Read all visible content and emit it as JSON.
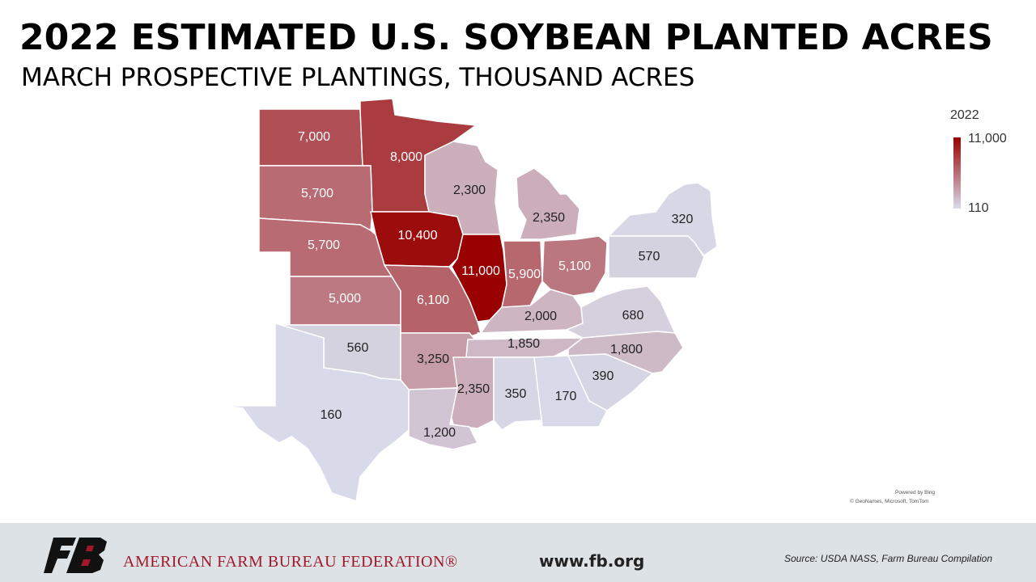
{
  "header": {
    "title": "2022 ESTIMATED U.S. SOYBEAN PLANTED ACRES",
    "subtitle": "MARCH PROSPECTIVE PLANTINGS, THOUSAND ACRES"
  },
  "legend": {
    "title": "2022",
    "max_label": "11,000",
    "min_label": "110",
    "max_value": 11000,
    "min_value": 110,
    "max_color": "#990000",
    "min_color": "#d8dbea"
  },
  "map": {
    "credit_line1": "Powered by Bing",
    "credit_line2": "© GeoNames, Microsoft, TomTom",
    "states": [
      {
        "id": "ND",
        "value": 7000,
        "label": "7,000"
      },
      {
        "id": "MN",
        "value": 8000,
        "label": "8,000"
      },
      {
        "id": "SD",
        "value": 5700,
        "label": "5,700"
      },
      {
        "id": "WI",
        "value": 2300,
        "label": "2,300"
      },
      {
        "id": "MI",
        "value": 2350,
        "label": "2,350"
      },
      {
        "id": "NY",
        "value": 320,
        "label": "320"
      },
      {
        "id": "IA",
        "value": 10400,
        "label": "10,400"
      },
      {
        "id": "NE",
        "value": 5700,
        "label": "5,700"
      },
      {
        "id": "IL",
        "value": 11000,
        "label": "11,000"
      },
      {
        "id": "IN",
        "value": 5900,
        "label": "5,900"
      },
      {
        "id": "OH",
        "value": 5100,
        "label": "5,100"
      },
      {
        "id": "PA",
        "value": 570,
        "label": "570"
      },
      {
        "id": "KS",
        "value": 5000,
        "label": "5,000"
      },
      {
        "id": "MO",
        "value": 6100,
        "label": "6,100"
      },
      {
        "id": "KY",
        "value": 2000,
        "label": "2,000"
      },
      {
        "id": "VA",
        "value": 680,
        "label": "680"
      },
      {
        "id": "OK",
        "value": 560,
        "label": "560"
      },
      {
        "id": "AR",
        "value": 3250,
        "label": "3,250"
      },
      {
        "id": "TN",
        "value": 1850,
        "label": "1,850"
      },
      {
        "id": "NC",
        "value": 1800,
        "label": "1,800"
      },
      {
        "id": "SC",
        "value": 390,
        "label": "390"
      },
      {
        "id": "MS",
        "value": 2350,
        "label": "2,350"
      },
      {
        "id": "AL",
        "value": 350,
        "label": "350"
      },
      {
        "id": "GA",
        "value": 170,
        "label": "170"
      },
      {
        "id": "TX",
        "value": 160,
        "label": "160"
      },
      {
        "id": "LA",
        "value": 1200,
        "label": "1,200"
      }
    ]
  },
  "footer": {
    "org_name": "AMERICAN FARM BUREAU FEDERATION®",
    "website": "www.fb.org",
    "source": "Source:  USDA NASS, Farm Bureau Compilation",
    "logo_icon": "fb-logo-icon"
  }
}
